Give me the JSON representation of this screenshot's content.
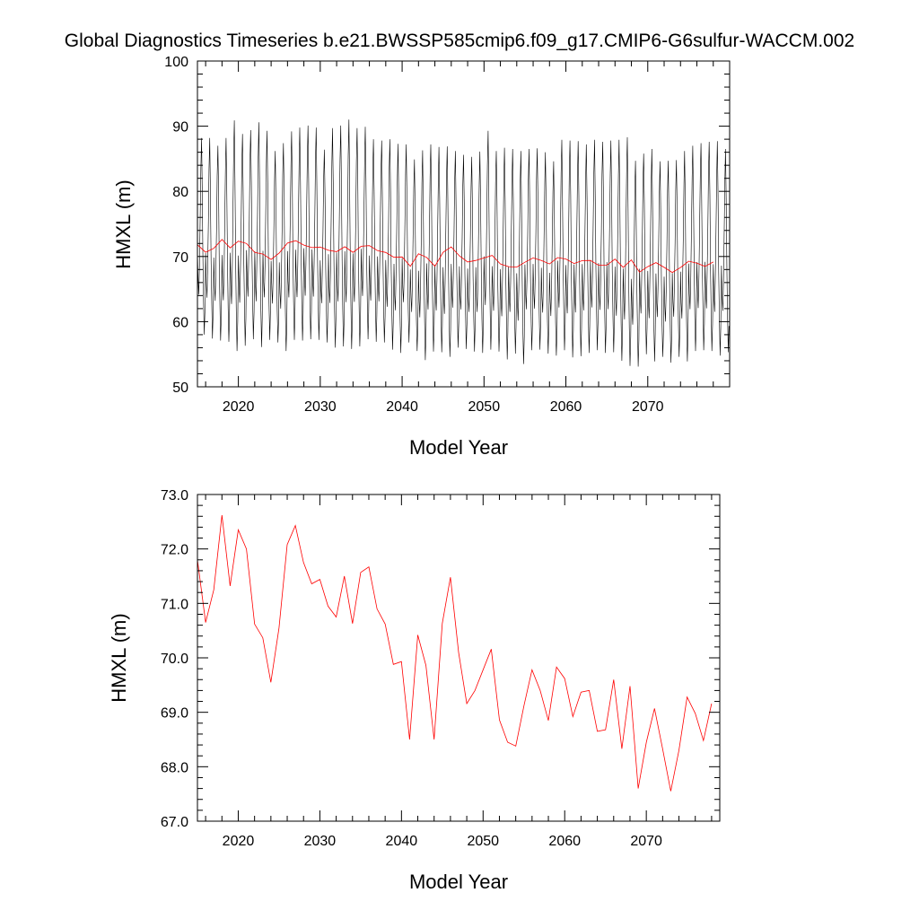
{
  "figure": {
    "title": "Global Diagnostics Timeseries b.e21.BWSSP585cmip6.f09_g17.CMIP6-G6sulfur-WACCM.002"
  },
  "colors": {
    "monthly_series": "#000000",
    "annual_series": "#ff0000"
  },
  "chart_data": [
    {
      "type": "line",
      "xlabel": "Model Year",
      "ylabel": "HMXL (m)",
      "xlim": [
        2015,
        2080
      ],
      "ylim": [
        50,
        100
      ],
      "x_ticks": [
        2020,
        2030,
        2040,
        2050,
        2060,
        2070
      ],
      "y_ticks": [
        50,
        60,
        70,
        80,
        90,
        100
      ],
      "y_tick_labels": [
        "50",
        "60",
        "70",
        "80",
        "90",
        "100"
      ],
      "grid": false,
      "series": [
        {
          "color": "#000000",
          "frequency": "monthly",
          "start_year": 2015,
          "monthly_pattern_offsets": [
            -2.0,
            -6.0,
            -8.0,
            -4.0,
            2.5,
            11.0,
            16.0,
            8.0,
            -3.0,
            -9.0,
            -13.5,
            -10.0
          ],
          "annual_peak_values": [
            88.2,
            88.2,
            87.0,
            88.2,
            90.9,
            88.8,
            89.4,
            90.6,
            89.3,
            86.2,
            87.4,
            89.2,
            89.8,
            90.1,
            89.8,
            86.4,
            89.7,
            90.1,
            91.0,
            89.7,
            89.9,
            88.0,
            87.8,
            88.0,
            87.3,
            87.2,
            84.9,
            86.3,
            87.2,
            86.8,
            86.9,
            86.2,
            85.6,
            85.3,
            86.1,
            89.3,
            86.2,
            86.7,
            86.5,
            86.2,
            86.5,
            86.6,
            86.0,
            84.6,
            87.9,
            87.8,
            87.7,
            87.2,
            87.9,
            87.6,
            87.8,
            87.9,
            88.3,
            84.7,
            85.8,
            86.5,
            84.6,
            84.7,
            84.8,
            86.2,
            87.0,
            87.4,
            87.6,
            87.7,
            86.5
          ],
          "annual_trough_values": [
            58.0,
            57.4,
            57.1,
            56.9,
            55.5,
            56.3,
            57.3,
            56.1,
            57.2,
            56.8,
            55.5,
            57.2,
            57.1,
            57.3,
            57.2,
            56.8,
            56.0,
            56.2,
            55.8,
            56.2,
            57.3,
            56.9,
            56.8,
            55.7,
            55.2,
            56.8,
            55.5,
            54.1,
            55.4,
            55.3,
            54.6,
            56.0,
            55.8,
            55.4,
            55.2,
            55.7,
            55.4,
            54.2,
            55.1,
            53.5,
            55.6,
            55.7,
            55.1,
            54.8,
            55.6,
            54.5,
            54.7,
            55.2,
            55.6,
            55.2,
            55.3,
            54.0,
            53.2,
            53.1,
            55.0,
            53.9,
            54.6,
            53.7,
            54.6,
            53.9,
            55.5,
            55.6,
            55.5,
            54.8,
            55.3
          ]
        },
        {
          "color": "#ff0000",
          "frequency": "annual",
          "x": [
            2015,
            2016,
            2017,
            2018,
            2019,
            2020,
            2021,
            2022,
            2023,
            2024,
            2025,
            2026,
            2027,
            2028,
            2029,
            2030,
            2031,
            2032,
            2033,
            2034,
            2035,
            2036,
            2037,
            2038,
            2039,
            2040,
            2041,
            2042,
            2043,
            2044,
            2045,
            2046,
            2047,
            2048,
            2049,
            2050,
            2051,
            2052,
            2053,
            2054,
            2055,
            2056,
            2057,
            2058,
            2059,
            2060,
            2061,
            2062,
            2063,
            2064,
            2065,
            2066,
            2067,
            2068,
            2069,
            2070,
            2071,
            2072,
            2073,
            2074,
            2075,
            2076,
            2077,
            2078
          ],
          "values": [
            71.8,
            70.65,
            71.25,
            72.62,
            71.32,
            72.35,
            72.0,
            70.62,
            70.37,
            69.55,
            70.55,
            72.08,
            72.43,
            71.75,
            71.36,
            71.44,
            70.95,
            70.75,
            71.5,
            70.63,
            71.57,
            71.67,
            70.9,
            70.62,
            69.88,
            69.93,
            68.5,
            70.42,
            69.86,
            68.5,
            70.63,
            71.48,
            70.1,
            69.16,
            69.4,
            69.78,
            70.16,
            68.86,
            68.45,
            68.38,
            69.12,
            69.78,
            69.4,
            68.85,
            69.83,
            69.62,
            68.92,
            69.37,
            69.4,
            68.65,
            68.68,
            69.6,
            68.33,
            69.48,
            67.6,
            68.45,
            69.07,
            68.33,
            67.55,
            68.3,
            69.28,
            68.98,
            68.48,
            69.16
          ]
        }
      ]
    },
    {
      "type": "line",
      "xlabel": "Model Year",
      "ylabel": "HMXL (m)",
      "xlim": [
        2015,
        2079
      ],
      "ylim": [
        67,
        73
      ],
      "x_ticks": [
        2020,
        2030,
        2040,
        2050,
        2060,
        2070
      ],
      "y_ticks": [
        67,
        68,
        69,
        70,
        71,
        72,
        73
      ],
      "y_tick_labels": [
        "67.0",
        "68.0",
        "69.0",
        "70.0",
        "71.0",
        "72.0",
        "73.0"
      ],
      "grid": false,
      "series": [
        {
          "color": "#ff0000",
          "frequency": "annual",
          "x": [
            2015,
            2016,
            2017,
            2018,
            2019,
            2020,
            2021,
            2022,
            2023,
            2024,
            2025,
            2026,
            2027,
            2028,
            2029,
            2030,
            2031,
            2032,
            2033,
            2034,
            2035,
            2036,
            2037,
            2038,
            2039,
            2040,
            2041,
            2042,
            2043,
            2044,
            2045,
            2046,
            2047,
            2048,
            2049,
            2050,
            2051,
            2052,
            2053,
            2054,
            2055,
            2056,
            2057,
            2058,
            2059,
            2060,
            2061,
            2062,
            2063,
            2064,
            2065,
            2066,
            2067,
            2068,
            2069,
            2070,
            2071,
            2072,
            2073,
            2074,
            2075,
            2076,
            2077,
            2078
          ],
          "values": [
            71.8,
            70.65,
            71.25,
            72.62,
            71.32,
            72.35,
            72.0,
            70.62,
            70.37,
            69.55,
            70.55,
            72.08,
            72.43,
            71.75,
            71.36,
            71.44,
            70.95,
            70.75,
            71.5,
            70.63,
            71.57,
            71.67,
            70.9,
            70.62,
            69.88,
            69.93,
            68.5,
            70.42,
            69.86,
            68.5,
            70.63,
            71.48,
            70.1,
            69.16,
            69.4,
            69.78,
            70.16,
            68.86,
            68.45,
            68.38,
            69.12,
            69.78,
            69.4,
            68.85,
            69.83,
            69.62,
            68.92,
            69.37,
            69.4,
            68.65,
            68.68,
            69.6,
            68.33,
            69.48,
            67.6,
            68.45,
            69.07,
            68.33,
            67.55,
            68.3,
            69.28,
            68.98,
            68.48,
            69.16
          ]
        }
      ]
    }
  ]
}
